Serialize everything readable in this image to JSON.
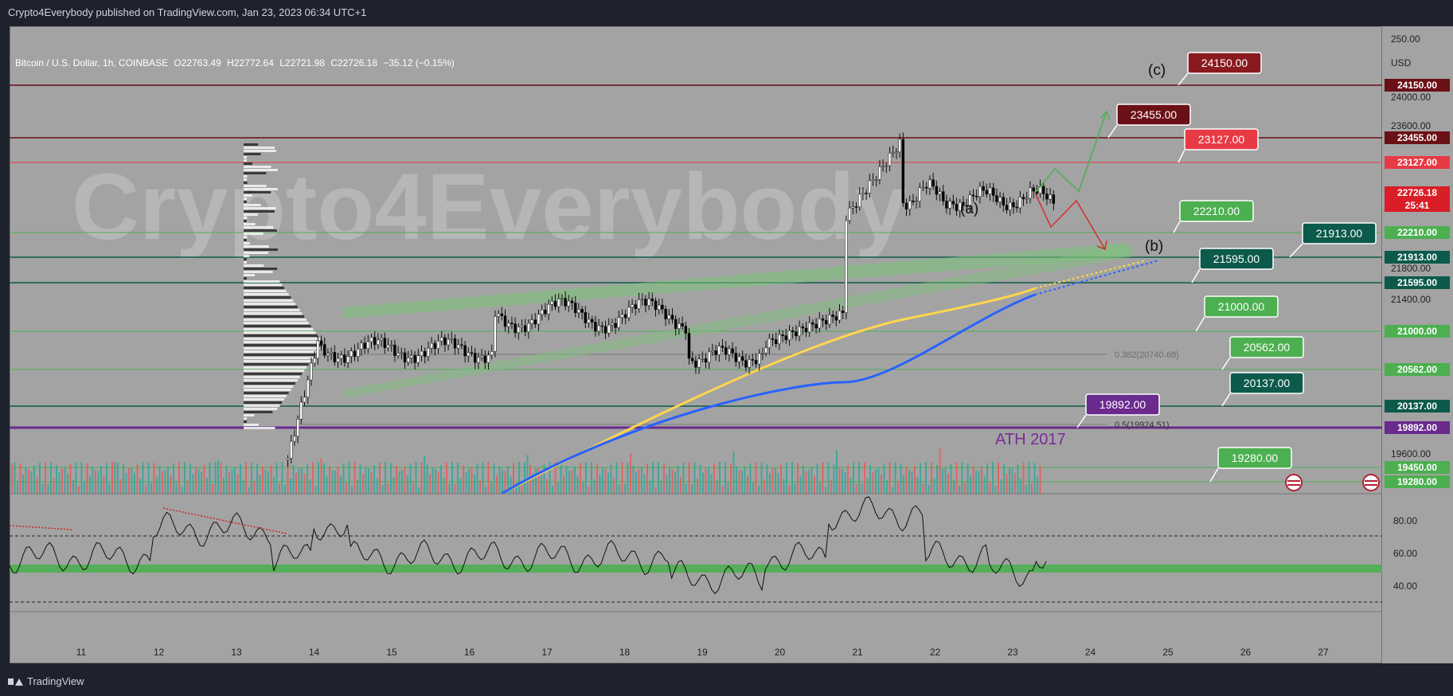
{
  "header": {
    "publisher": "Crypto4Everybody published on TradingView.com, Jan 23, 2023 06:34 UTC+1"
  },
  "legend": {
    "symbol": "Bitcoin / U.S. Dollar, 1h, COINBASE",
    "open": "O22763.49",
    "high": "H22772.64",
    "low": "L22721.98",
    "close": "C22726.18",
    "change": "−35.12 (−0.15%)"
  },
  "footer": {
    "brand": "TradingView"
  },
  "price_axis": {
    "currency": "USD",
    "ticks": [
      "250.00",
      "24000.00",
      "23600.00",
      "21800.00",
      "21400.00",
      "19600.00"
    ],
    "level_tags": [
      {
        "value": "24150.00",
        "color": "#6b1016"
      },
      {
        "value": "23455.00",
        "color": "#6b1016"
      },
      {
        "value": "23127.00",
        "color": "#e83a45"
      },
      {
        "value": "22726.18",
        "color": "#d91e28"
      },
      {
        "value": "25:41",
        "color": "#d91e28"
      },
      {
        "value": "22210.00",
        "color": "#4caf50"
      },
      {
        "value": "21913.00",
        "color": "#0c5a4b"
      },
      {
        "value": "21595.00",
        "color": "#0c5a4b"
      },
      {
        "value": "21000.00",
        "color": "#4caf50"
      },
      {
        "value": "20562.00",
        "color": "#4caf50"
      },
      {
        "value": "20137.00",
        "color": "#0c5a4b"
      },
      {
        "value": "19892.00",
        "color": "#6a2a8e"
      },
      {
        "value": "19450.00",
        "color": "#4caf50"
      },
      {
        "value": "19280.00",
        "color": "#4caf50"
      }
    ]
  },
  "rsi_axis": {
    "ticks": [
      "80.00",
      "60.00",
      "40.00"
    ]
  },
  "time_axis": {
    "labels": [
      "11",
      "12",
      "13",
      "14",
      "15",
      "16",
      "17",
      "18",
      "19",
      "20",
      "21",
      "22",
      "23",
      "24",
      "25",
      "26",
      "27"
    ]
  },
  "callouts": [
    {
      "value": "24150.00",
      "color": "#8b1a20"
    },
    {
      "value": "23455.00",
      "color": "#6b1016"
    },
    {
      "value": "23127.00",
      "color": "#e83a45"
    },
    {
      "value": "22210.00",
      "color": "#4caf50"
    },
    {
      "value": "21913.00",
      "color": "#0c5a4b"
    },
    {
      "value": "21595.00",
      "color": "#0c5a4b"
    },
    {
      "value": "21000.00",
      "color": "#4caf50"
    },
    {
      "value": "20562.00",
      "color": "#4caf50"
    },
    {
      "value": "20137.00",
      "color": "#0c5a4b"
    },
    {
      "value": "19892.00",
      "color": "#6a2a8e"
    },
    {
      "value": "19280.00",
      "color": "#4caf50"
    }
  ],
  "annotations": {
    "wave_a": "(a)",
    "wave_b": "(b)",
    "wave_c": "(c)",
    "ath": "ATH 2017",
    "fib_382": "0.382(20740.68)",
    "fib_5": "0.5(19924.51)",
    "watermark": "Crypto4Everybody"
  },
  "colors": {
    "background": "#1e222d",
    "panel": "#a3a3a3",
    "up": "#26a69a",
    "down": "#ef5350",
    "ema_fast": "#ffd54f",
    "ema_slow": "#2962ff",
    "rsi_band": "#4caf50"
  },
  "icons": [
    "us-flag-icon",
    "us-flag-icon"
  ]
}
